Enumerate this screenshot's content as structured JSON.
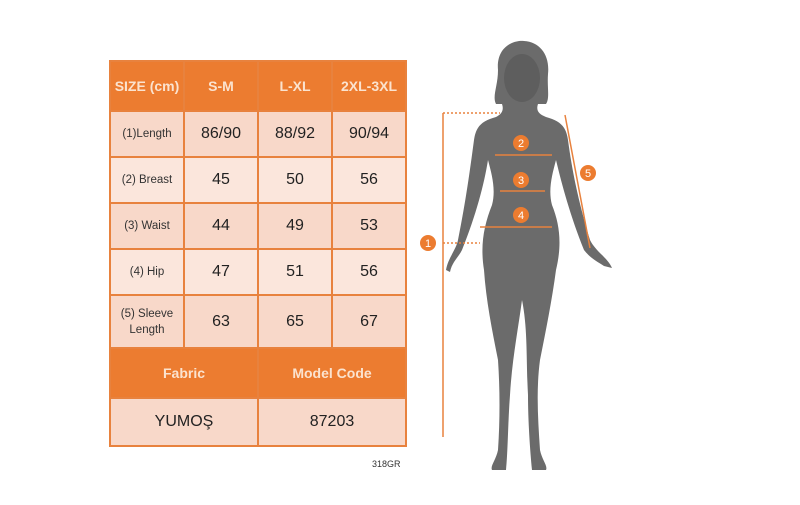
{
  "table": {
    "header": [
      "SIZE (cm)",
      "S-M",
      "L-XL",
      "2XL-3XL"
    ],
    "rows": [
      {
        "label": "(1)Length",
        "values": [
          "86/90",
          "88/92",
          "90/94"
        ]
      },
      {
        "label": "(2) Breast",
        "values": [
          "45",
          "50",
          "56"
        ]
      },
      {
        "label": "(3) Waist",
        "values": [
          "44",
          "49",
          "53"
        ]
      },
      {
        "label": "(4) Hip",
        "values": [
          "47",
          "51",
          "56"
        ]
      },
      {
        "label": "(5) Sleeve Length",
        "values": [
          "63",
          "65",
          "67"
        ]
      }
    ],
    "footer_header": [
      "Fabric",
      "Model Code"
    ],
    "footer_values": [
      "YUMOŞ",
      "87203"
    ]
  },
  "product_code": "318GR",
  "markers": [
    "1",
    "2",
    "3",
    "4",
    "5"
  ],
  "colors": {
    "accent": "#ec7c30",
    "cell": "#f8d8c9",
    "silhouette": "#6b6b6b"
  }
}
